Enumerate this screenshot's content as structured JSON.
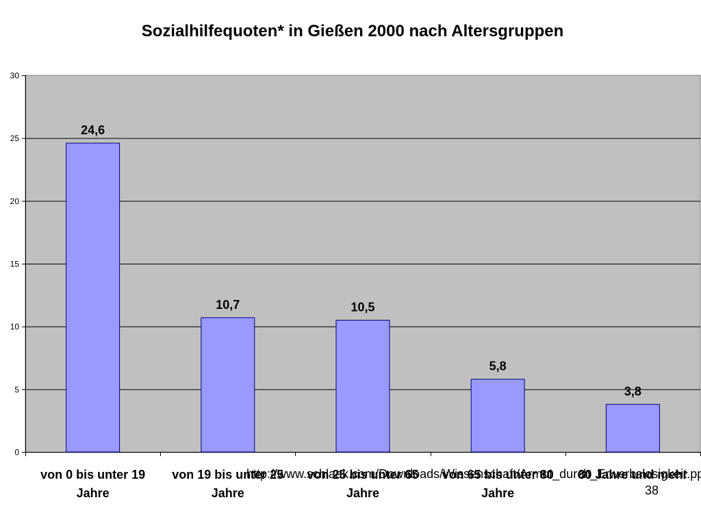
{
  "chart_data": {
    "type": "bar",
    "title": "Sozialhilfequoten* in Gießen 2000 nach Altersgruppen",
    "categories": [
      "von 0 bis unter 19 Jahre",
      "von 19 bis unter 25 Jahre",
      "von 25 bis unter 65 Jahre",
      "von 65 bis unter 80 Jahre",
      "80 Jahre und mehr"
    ],
    "values": [
      24.6,
      10.7,
      10.5,
      5.8,
      3.8
    ],
    "data_labels": [
      "24,6",
      "10,7",
      "10,5",
      "5,8",
      "3,8"
    ],
    "yticks": [
      0,
      5,
      10,
      15,
      20,
      25,
      30
    ],
    "ylim": [
      0,
      30
    ],
    "xlabel": "",
    "ylabel": "",
    "grid": true,
    "colors": {
      "bar_fill": "#9999ff",
      "bar_stroke": "#000080",
      "plot_background": "#c0c0c0",
      "grid": "#000000"
    }
  },
  "footer": {
    "url": "http://www.schlaak.com/Downloads/Wissenschaft/Armut_durch_Erwerbslosigkeit.ppt",
    "page_number": "38"
  }
}
